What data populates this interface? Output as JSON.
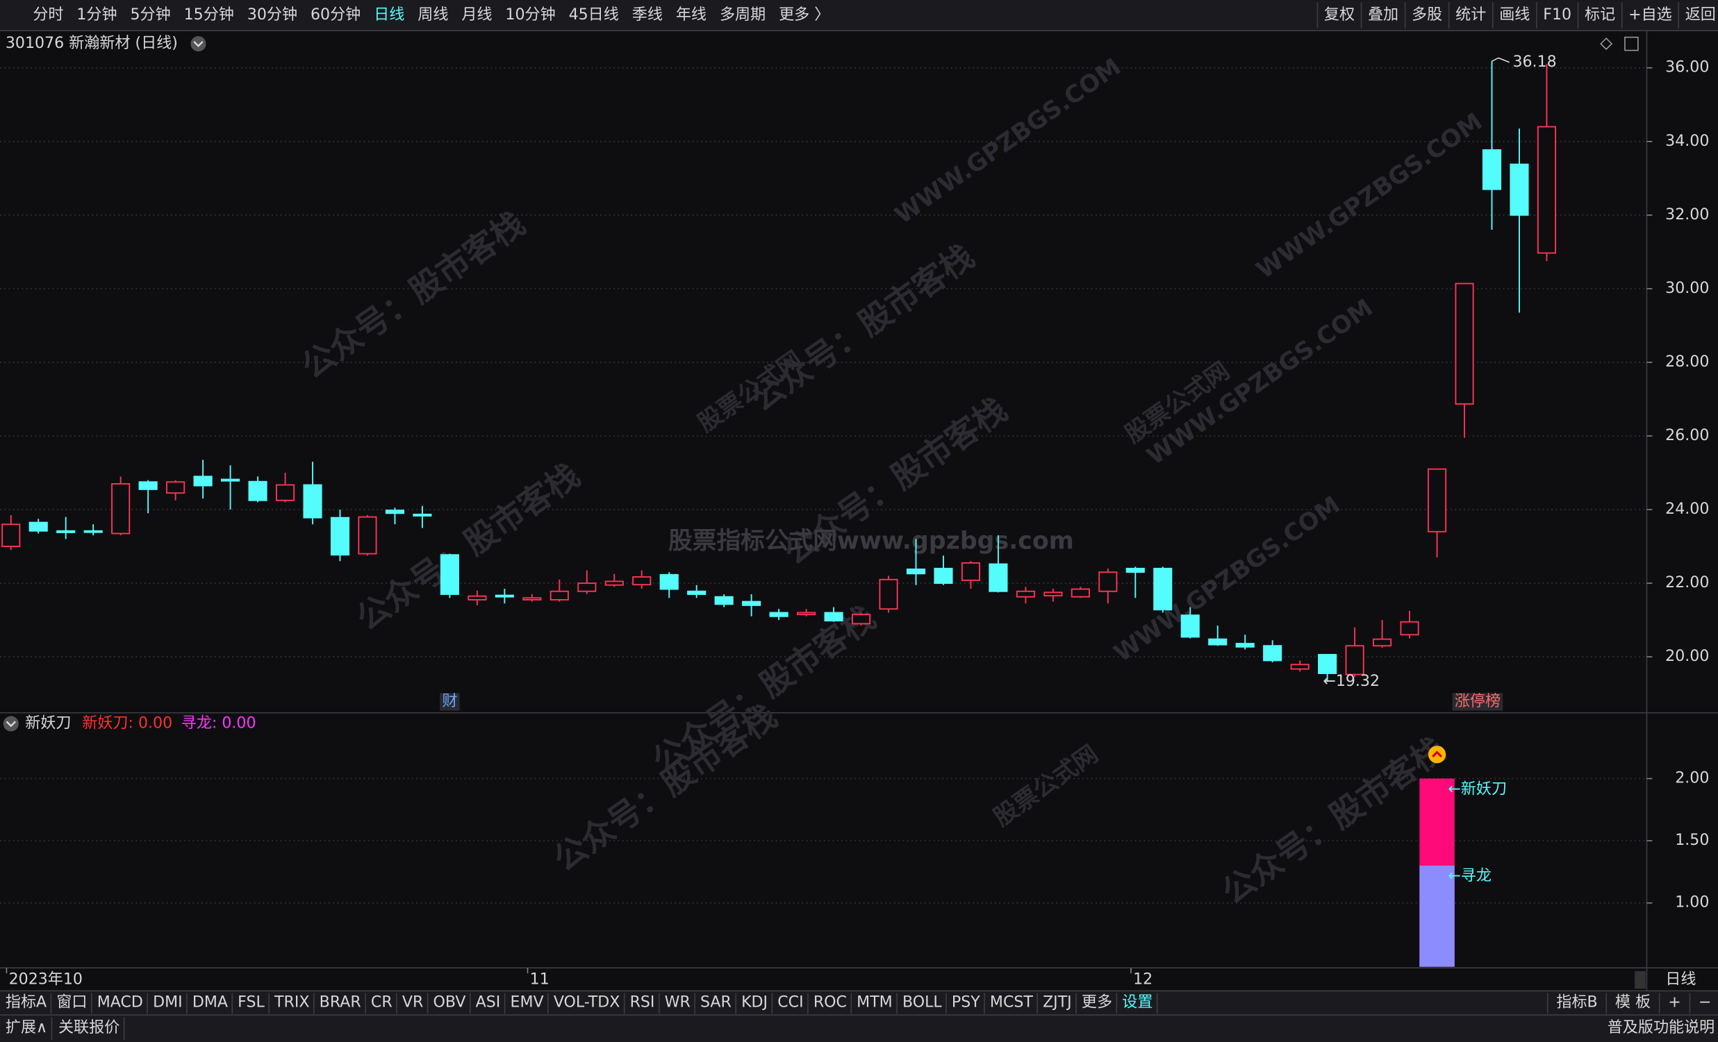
{
  "toolbar": {
    "periods": [
      "分时",
      "1分钟",
      "5分钟",
      "15分钟",
      "30分钟",
      "60分钟",
      "日线",
      "周线",
      "月线",
      "10分钟",
      "45日线",
      "季线",
      "年线",
      "多周期",
      "更多 〉"
    ],
    "active": "日线",
    "actions": [
      "复权",
      "叠加",
      "多股",
      "统计",
      "画线",
      "F10",
      "标记",
      "+自选",
      "返回"
    ]
  },
  "watermarks": [
    "公众号：股市客栈",
    "WWW.GPZBGS.COM",
    "股票公式网",
    "股票指标公式网www.gpzbgs.com"
  ],
  "chart_data": [
    {
      "type": "candlestick",
      "title": "301076 新瀚新材 (日线)",
      "open": [
        23.0,
        23.65,
        23.42,
        23.42,
        23.35,
        24.75,
        24.45,
        24.9,
        24.82,
        24.76,
        24.25,
        24.67,
        23.78,
        22.8,
        23.98,
        23.87,
        22.77,
        21.55,
        21.67,
        21.55,
        21.55,
        21.78,
        21.95,
        21.96,
        22.23,
        21.78,
        21.63,
        21.5,
        21.2,
        21.15,
        21.2,
        20.9,
        21.3,
        22.38,
        22.4,
        22.08,
        22.52,
        21.63,
        21.66,
        21.63,
        21.78,
        22.4,
        22.4,
        21.13,
        20.48,
        20.36,
        20.3,
        19.67,
        20.06,
        19.52,
        20.3,
        20.6,
        23.4,
        26.87,
        33.77,
        33.38,
        30.97
      ],
      "high": [
        23.85,
        23.75,
        23.8,
        23.6,
        24.9,
        24.8,
        24.8,
        25.35,
        25.2,
        24.9,
        25.0,
        25.3,
        24.0,
        23.85,
        24.05,
        24.1,
        22.8,
        21.8,
        21.85,
        21.7,
        22.1,
        22.35,
        22.25,
        22.35,
        22.3,
        21.95,
        21.7,
        21.7,
        21.3,
        21.3,
        21.35,
        21.2,
        22.2,
        23.2,
        22.75,
        22.6,
        23.3,
        21.9,
        21.85,
        21.9,
        22.4,
        22.45,
        22.45,
        21.35,
        20.85,
        20.6,
        20.45,
        19.9,
        20.06,
        20.8,
        21.0,
        21.25,
        25.1,
        30.14,
        36.18,
        34.35,
        36.1
      ],
      "low": [
        22.9,
        23.35,
        23.2,
        23.3,
        23.3,
        23.9,
        24.25,
        24.3,
        24.0,
        24.2,
        24.2,
        23.6,
        22.6,
        22.75,
        23.6,
        23.5,
        21.6,
        21.4,
        21.45,
        21.5,
        21.5,
        21.7,
        21.9,
        21.85,
        21.6,
        21.6,
        21.35,
        21.1,
        21.0,
        21.1,
        20.95,
        20.85,
        21.2,
        21.95,
        21.95,
        21.85,
        21.75,
        21.45,
        21.5,
        21.6,
        21.45,
        21.6,
        21.2,
        20.5,
        20.3,
        20.2,
        19.85,
        19.6,
        19.32,
        19.45,
        20.25,
        20.5,
        22.7,
        25.95,
        31.6,
        29.35,
        30.75
      ],
      "close": [
        23.6,
        23.42,
        23.38,
        23.4,
        24.7,
        24.55,
        24.75,
        24.65,
        24.78,
        24.25,
        24.67,
        23.78,
        22.77,
        23.8,
        23.9,
        23.83,
        21.7,
        21.65,
        21.63,
        21.6,
        21.78,
        22.0,
        22.05,
        22.17,
        21.84,
        21.7,
        21.43,
        21.4,
        21.1,
        21.2,
        20.98,
        21.15,
        22.1,
        22.26,
        22.0,
        22.55,
        21.78,
        21.78,
        21.75,
        21.84,
        22.3,
        22.3,
        21.28,
        20.54,
        20.33,
        20.27,
        19.9,
        19.79,
        19.55,
        20.3,
        20.48,
        20.95,
        25.1,
        30.14,
        32.7,
        32.0,
        34.4
      ],
      "up_color": "#ff3355",
      "down_color": "#54fcfc",
      "ylim": [
        18.51,
        37.01
      ],
      "yticks": [
        {
          "value": 20,
          "label": "20.00"
        },
        {
          "value": 22,
          "label": "22.00"
        },
        {
          "value": 24,
          "label": "24.00"
        },
        {
          "value": 26,
          "label": "26.00"
        },
        {
          "value": 28,
          "label": "28.00"
        },
        {
          "value": 30,
          "label": "30.00"
        },
        {
          "value": 32,
          "label": "32.00"
        },
        {
          "value": 34,
          "label": "34.00"
        },
        {
          "value": 36,
          "label": "36.00"
        }
      ],
      "grid": true,
      "x_labels": [
        {
          "index": 0,
          "label": "2023年10"
        },
        {
          "index": 19,
          "label": "11"
        },
        {
          "index": 41,
          "label": "12"
        }
      ],
      "x_axis_name": "日线",
      "annotations": [
        {
          "index": 48,
          "value": 19.32,
          "label": "←19.32"
        },
        {
          "index": 54,
          "value": 36.18,
          "label": "36.18"
        }
      ],
      "markers": [
        {
          "index": 16,
          "label": "财",
          "color": "#6aa8ff"
        },
        {
          "index": 53,
          "label": "涨停榜",
          "color": "#ff6a6a"
        }
      ]
    },
    {
      "type": "bar",
      "title": "新妖刀",
      "x_index": 52,
      "series": [
        {
          "legend": "新妖刀: 0.00",
          "end_label": "←新妖刀",
          "color": "#ff0a78",
          "legend_color": "#ff3030",
          "value": 2.0
        },
        {
          "legend": "寻龙: 0.00",
          "end_label": "←寻龙",
          "color": "#8c8cff",
          "legend_color": "#ff33ff",
          "value": 1.3
        }
      ],
      "ylim": [
        0.487,
        2.52
      ],
      "yticks": [
        {
          "value": 1,
          "label": "1.00"
        },
        {
          "value": 1.5,
          "label": "1.50"
        },
        {
          "value": 2,
          "label": "2.00"
        }
      ],
      "grid": true
    }
  ],
  "indicator_bar": {
    "items": [
      "指标A",
      "窗口",
      "MACD",
      "DMI",
      "DMA",
      "FSL",
      "TRIX",
      "BRAR",
      "CR",
      "VR",
      "OBV",
      "ASI",
      "EMV",
      "VOL-TDX",
      "RSI",
      "WR",
      "SAR",
      "KDJ",
      "CCI",
      "ROC",
      "MTM",
      "BOLL",
      "PSY",
      "MCST",
      "ZJTJ",
      "更多",
      "设置"
    ],
    "active": "设置",
    "right": [
      "指标B",
      "模 板",
      "+",
      "−"
    ]
  },
  "status_bar": {
    "left": [
      "扩展∧",
      "关联报价"
    ],
    "right": "普及版功能说明"
  }
}
